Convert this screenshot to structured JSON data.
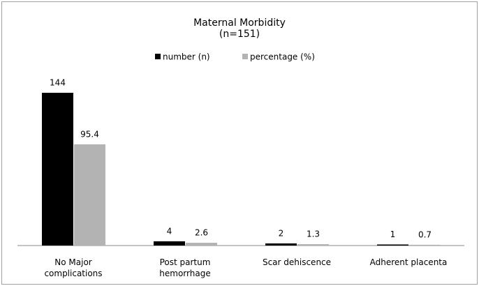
{
  "chart_data": {
    "type": "bar",
    "title": "Maternal Morbidity",
    "subtitle": "(n=151)",
    "categories": [
      "No Major complications",
      "Post partum hemorrhage",
      "Scar dehiscence",
      "Adherent placenta"
    ],
    "series": [
      {
        "name": "number (n)",
        "color": "#000000",
        "values": [
          144,
          4,
          2,
          1
        ]
      },
      {
        "name": "percentage (%)",
        "color": "#b3b3b3",
        "values": [
          95.4,
          2.6,
          1.3,
          0.7
        ]
      }
    ],
    "legend": "top"
  }
}
